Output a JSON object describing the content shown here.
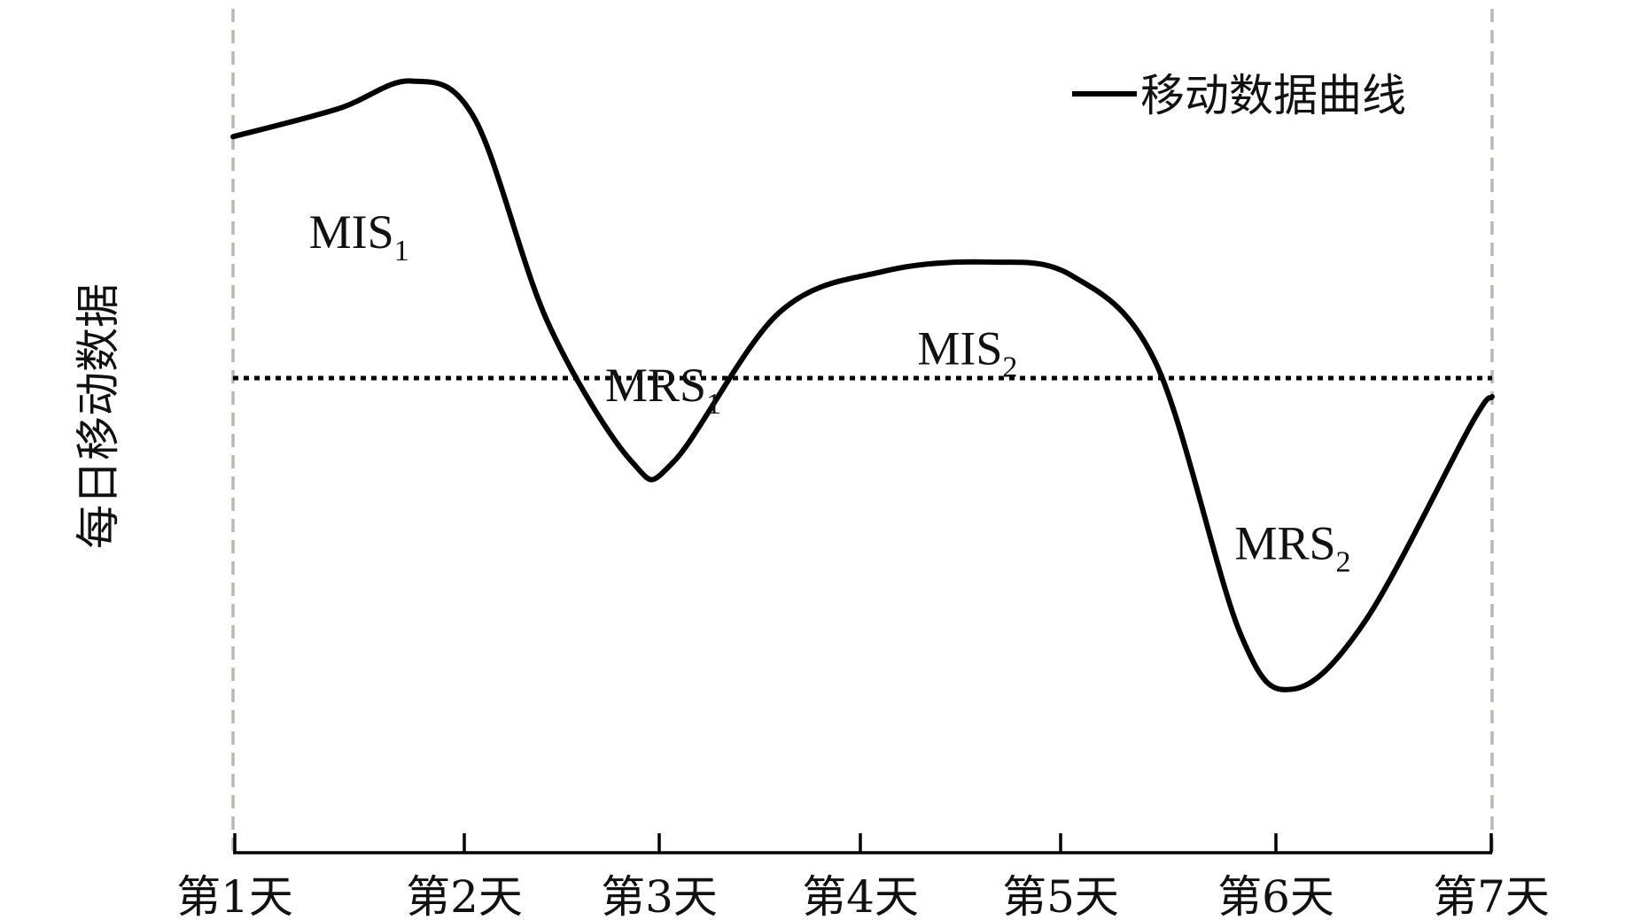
{
  "chart_data": {
    "type": "line",
    "ylabel": "每日移动数据",
    "categories": [
      "第1天",
      "第2天",
      "第3天",
      "第4天",
      "第5天",
      "第6天",
      "第7天"
    ],
    "series": [
      {
        "name": "移动数据曲线",
        "points": [
          [
            1.0,
            0.82
          ],
          [
            1.5,
            0.88
          ],
          [
            1.85,
            0.94
          ],
          [
            2.15,
            0.86
          ],
          [
            2.5,
            0.42
          ],
          [
            2.9,
            0.12
          ],
          [
            3.1,
            0.12
          ],
          [
            3.6,
            0.44
          ],
          [
            4.1,
            0.53
          ],
          [
            4.6,
            0.55
          ],
          [
            5.0,
            0.52
          ],
          [
            5.4,
            0.33
          ],
          [
            5.8,
            -0.25
          ],
          [
            6.05,
            -0.37
          ],
          [
            6.4,
            -0.22
          ],
          [
            6.9,
            0.2
          ],
          [
            7.0,
            0.26
          ]
        ],
        "color": "#000000"
      }
    ],
    "reference_line": {
      "y": 0.3,
      "style": "dotted"
    },
    "boundaries": [
      1,
      7
    ],
    "annotations": [
      {
        "text": "MIS",
        "sub": "1",
        "x": 1.6,
        "y": 0.58
      },
      {
        "text": "MRS",
        "sub": "1",
        "x": 3.05,
        "y": 0.25
      },
      {
        "text": "MIS",
        "sub": "2",
        "x": 4.5,
        "y": 0.33
      },
      {
        "text": "MRS",
        "sub": "2",
        "x": 6.05,
        "y": -0.09
      }
    ],
    "ylim": [
      -0.44,
      1.0
    ],
    "xlim": [
      1.0,
      7.0
    ],
    "grid": false,
    "legend": {
      "position": "top-right",
      "entries": [
        "移动数据曲线"
      ]
    }
  }
}
